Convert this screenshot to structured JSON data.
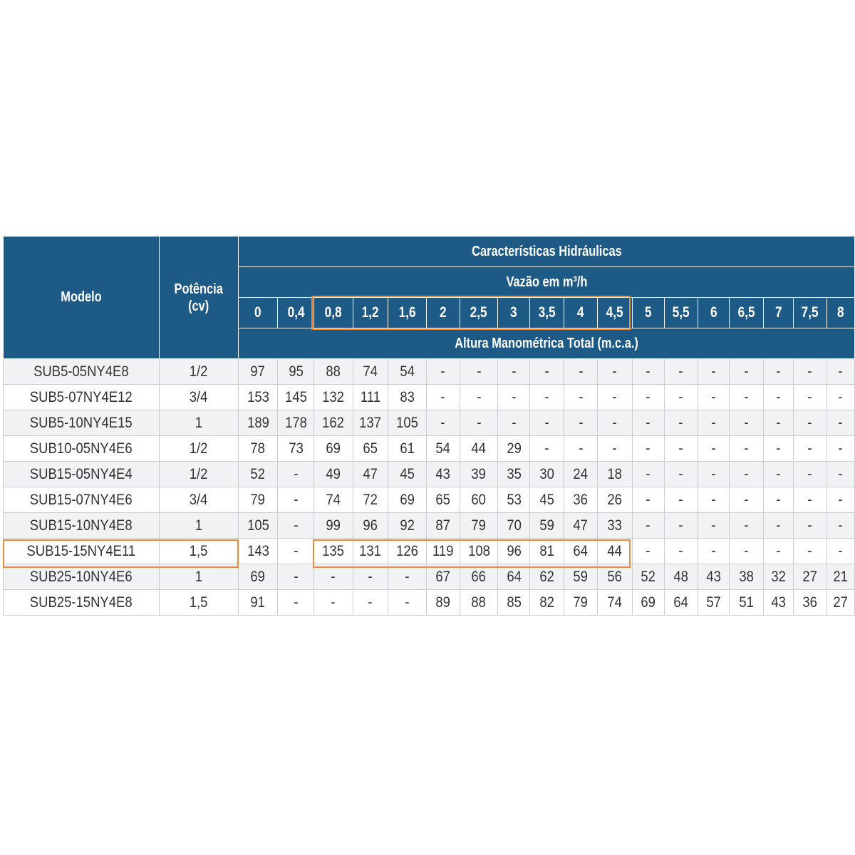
{
  "table": {
    "col_model": "Modelo",
    "col_power": "Potência\n(cv)",
    "group_title": "Características Hidráulicas",
    "flow_title": "Vazão em m³/h",
    "height_title": "Altura Manométrica Total (m.c.a.)",
    "flows": [
      "0",
      "0,4",
      "0,8",
      "1,2",
      "1,6",
      "2",
      "2,5",
      "3",
      "3,5",
      "4",
      "4,5",
      "5",
      "5,5",
      "6",
      "6,5",
      "7",
      "7,5",
      "8"
    ],
    "rows": [
      {
        "model": "SUB5-05NY4E8",
        "power": "1/2",
        "values": [
          "97",
          "95",
          "88",
          "74",
          "54",
          "-",
          "-",
          "-",
          "-",
          "-",
          "-",
          "-",
          "-",
          "-",
          "-",
          "-",
          "-",
          "-"
        ]
      },
      {
        "model": "SUB5-07NY4E12",
        "power": "3/4",
        "values": [
          "153",
          "145",
          "132",
          "111",
          "83",
          "-",
          "-",
          "-",
          "-",
          "-",
          "-",
          "-",
          "-",
          "-",
          "-",
          "-",
          "-",
          "-"
        ]
      },
      {
        "model": "SUB5-10NY4E15",
        "power": "1",
        "values": [
          "189",
          "178",
          "162",
          "137",
          "105",
          "-",
          "-",
          "-",
          "-",
          "-",
          "-",
          "-",
          "-",
          "-",
          "-",
          "-",
          "-",
          "-"
        ]
      },
      {
        "model": "SUB10-05NY4E6",
        "power": "1/2",
        "values": [
          "78",
          "73",
          "69",
          "65",
          "61",
          "54",
          "44",
          "29",
          "-",
          "-",
          "-",
          "-",
          "-",
          "-",
          "-",
          "-",
          "-",
          "-"
        ]
      },
      {
        "model": "SUB15-05NY4E4",
        "power": "1/2",
        "values": [
          "52",
          "-",
          "49",
          "47",
          "45",
          "43",
          "39",
          "35",
          "30",
          "24",
          "18",
          "-",
          "-",
          "-",
          "-",
          "-",
          "-",
          "-"
        ]
      },
      {
        "model": "SUB15-07NY4E6",
        "power": "3/4",
        "values": [
          "79",
          "-",
          "74",
          "72",
          "69",
          "65",
          "60",
          "53",
          "45",
          "36",
          "26",
          "-",
          "-",
          "-",
          "-",
          "-",
          "-",
          "-"
        ]
      },
      {
        "model": "SUB15-10NY4E8",
        "power": "1",
        "values": [
          "105",
          "-",
          "99",
          "96",
          "92",
          "87",
          "79",
          "70",
          "59",
          "47",
          "33",
          "-",
          "-",
          "-",
          "-",
          "-",
          "-",
          "-"
        ]
      },
      {
        "model": "SUB15-15NY4E11",
        "power": "1,5",
        "values": [
          "143",
          "-",
          "135",
          "131",
          "126",
          "119",
          "108",
          "96",
          "81",
          "64",
          "44",
          "-",
          "-",
          "-",
          "-",
          "-",
          "-",
          "-"
        ]
      },
      {
        "model": "SUB25-10NY4E6",
        "power": "1",
        "values": [
          "69",
          "-",
          "-",
          "-",
          "-",
          "67",
          "66",
          "64",
          "62",
          "59",
          "56",
          "52",
          "48",
          "43",
          "38",
          "32",
          "27",
          "21"
        ]
      },
      {
        "model": "SUB25-15NY4E8",
        "power": "1,5",
        "values": [
          "91",
          "-",
          "-",
          "-",
          "-",
          "89",
          "88",
          "85",
          "82",
          "79",
          "74",
          "69",
          "64",
          "57",
          "51",
          "43",
          "36",
          "27"
        ]
      }
    ]
  },
  "highlight_color": "#e98a3c"
}
